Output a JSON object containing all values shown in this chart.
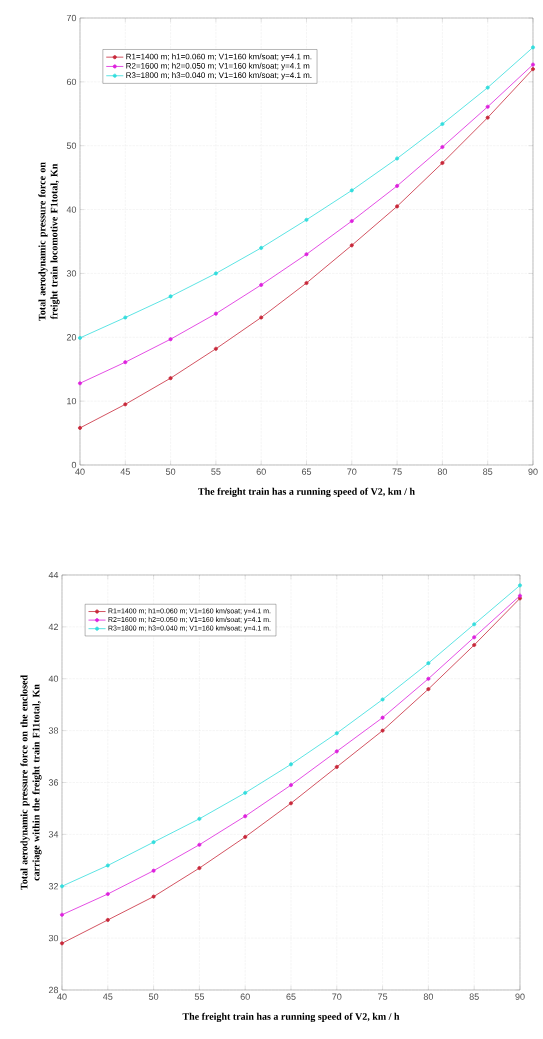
{
  "chart_data": [
    {
      "type": "line",
      "xlabel": "The freight train has a running speed of V2, km / h",
      "ylabel": "Total aerodynamic pressure force on freight train locomotive F1total, Kn",
      "x": [
        40,
        45,
        50,
        55,
        60,
        65,
        70,
        75,
        80,
        85,
        90
      ],
      "xlim": [
        40,
        90
      ],
      "xticks": [
        40,
        45,
        50,
        55,
        60,
        65,
        70,
        75,
        80,
        85,
        90
      ],
      "ylim": [
        0,
        70
      ],
      "yticks": [
        0,
        10,
        20,
        30,
        40,
        50,
        60,
        70
      ],
      "grid": true,
      "legend": "top left",
      "marker": "circle",
      "series": [
        {
          "name": "R1=1400 m; h1=0.060 m; V1=160 km/soat; y=4.1 m.",
          "color": "#c8283a",
          "values": [
            5.8,
            9.5,
            13.6,
            18.2,
            23.1,
            28.5,
            34.4,
            40.5,
            47.3,
            54.4,
            62.0
          ]
        },
        {
          "name": "R2=1600 m; h2=0.050 m; V1=160 km/soat; y=4.1 m",
          "color": "#dd22dd",
          "values": [
            12.8,
            16.1,
            19.7,
            23.7,
            28.2,
            33.0,
            38.2,
            43.7,
            49.8,
            56.1,
            62.7
          ]
        },
        {
          "name": "R3=1800 m; h3=0.040 m; V1=160 km/soat; y=4.1 m.",
          "color": "#33dddd",
          "values": [
            19.9,
            23.1,
            26.4,
            30.0,
            34.0,
            38.4,
            43.0,
            48.0,
            53.4,
            59.1,
            65.4
          ]
        }
      ]
    },
    {
      "type": "line",
      "xlabel": "The freight train has a running speed of V2, km / h",
      "ylabel": "Total aerodynamic pressure force on the enclosed carriage within the freight train F11total, Kn",
      "x": [
        40,
        45,
        50,
        55,
        60,
        65,
        70,
        75,
        80,
        85,
        90
      ],
      "xlim": [
        40,
        90
      ],
      "xticks": [
        40,
        45,
        50,
        55,
        60,
        65,
        70,
        75,
        80,
        85,
        90
      ],
      "ylim": [
        28,
        44
      ],
      "yticks": [
        28,
        30,
        32,
        34,
        36,
        38,
        40,
        42,
        44
      ],
      "grid": true,
      "legend": "top left",
      "marker": "circle",
      "series": [
        {
          "name": "R1=1400 m; h1=0.060 m; V1=160 km/soat; y=4.1 m.",
          "color": "#c8283a",
          "values": [
            29.8,
            30.7,
            31.6,
            32.7,
            33.9,
            35.2,
            36.6,
            38.0,
            39.6,
            41.3,
            43.1
          ]
        },
        {
          "name": "R2=1600 m; h2=0.050 m; V1=160 km/soat; y=4.1 m.",
          "color": "#dd22dd",
          "values": [
            30.9,
            31.7,
            32.6,
            33.6,
            34.7,
            35.9,
            37.2,
            38.5,
            40.0,
            41.6,
            43.2
          ]
        },
        {
          "name": "R3=1800 m; h3=0.040 m; V1=160 km/soat; y=4.1 m.",
          "color": "#33dddd",
          "values": [
            32.0,
            32.8,
            33.7,
            34.6,
            35.6,
            36.7,
            37.9,
            39.2,
            40.6,
            42.1,
            43.6
          ]
        }
      ]
    }
  ]
}
